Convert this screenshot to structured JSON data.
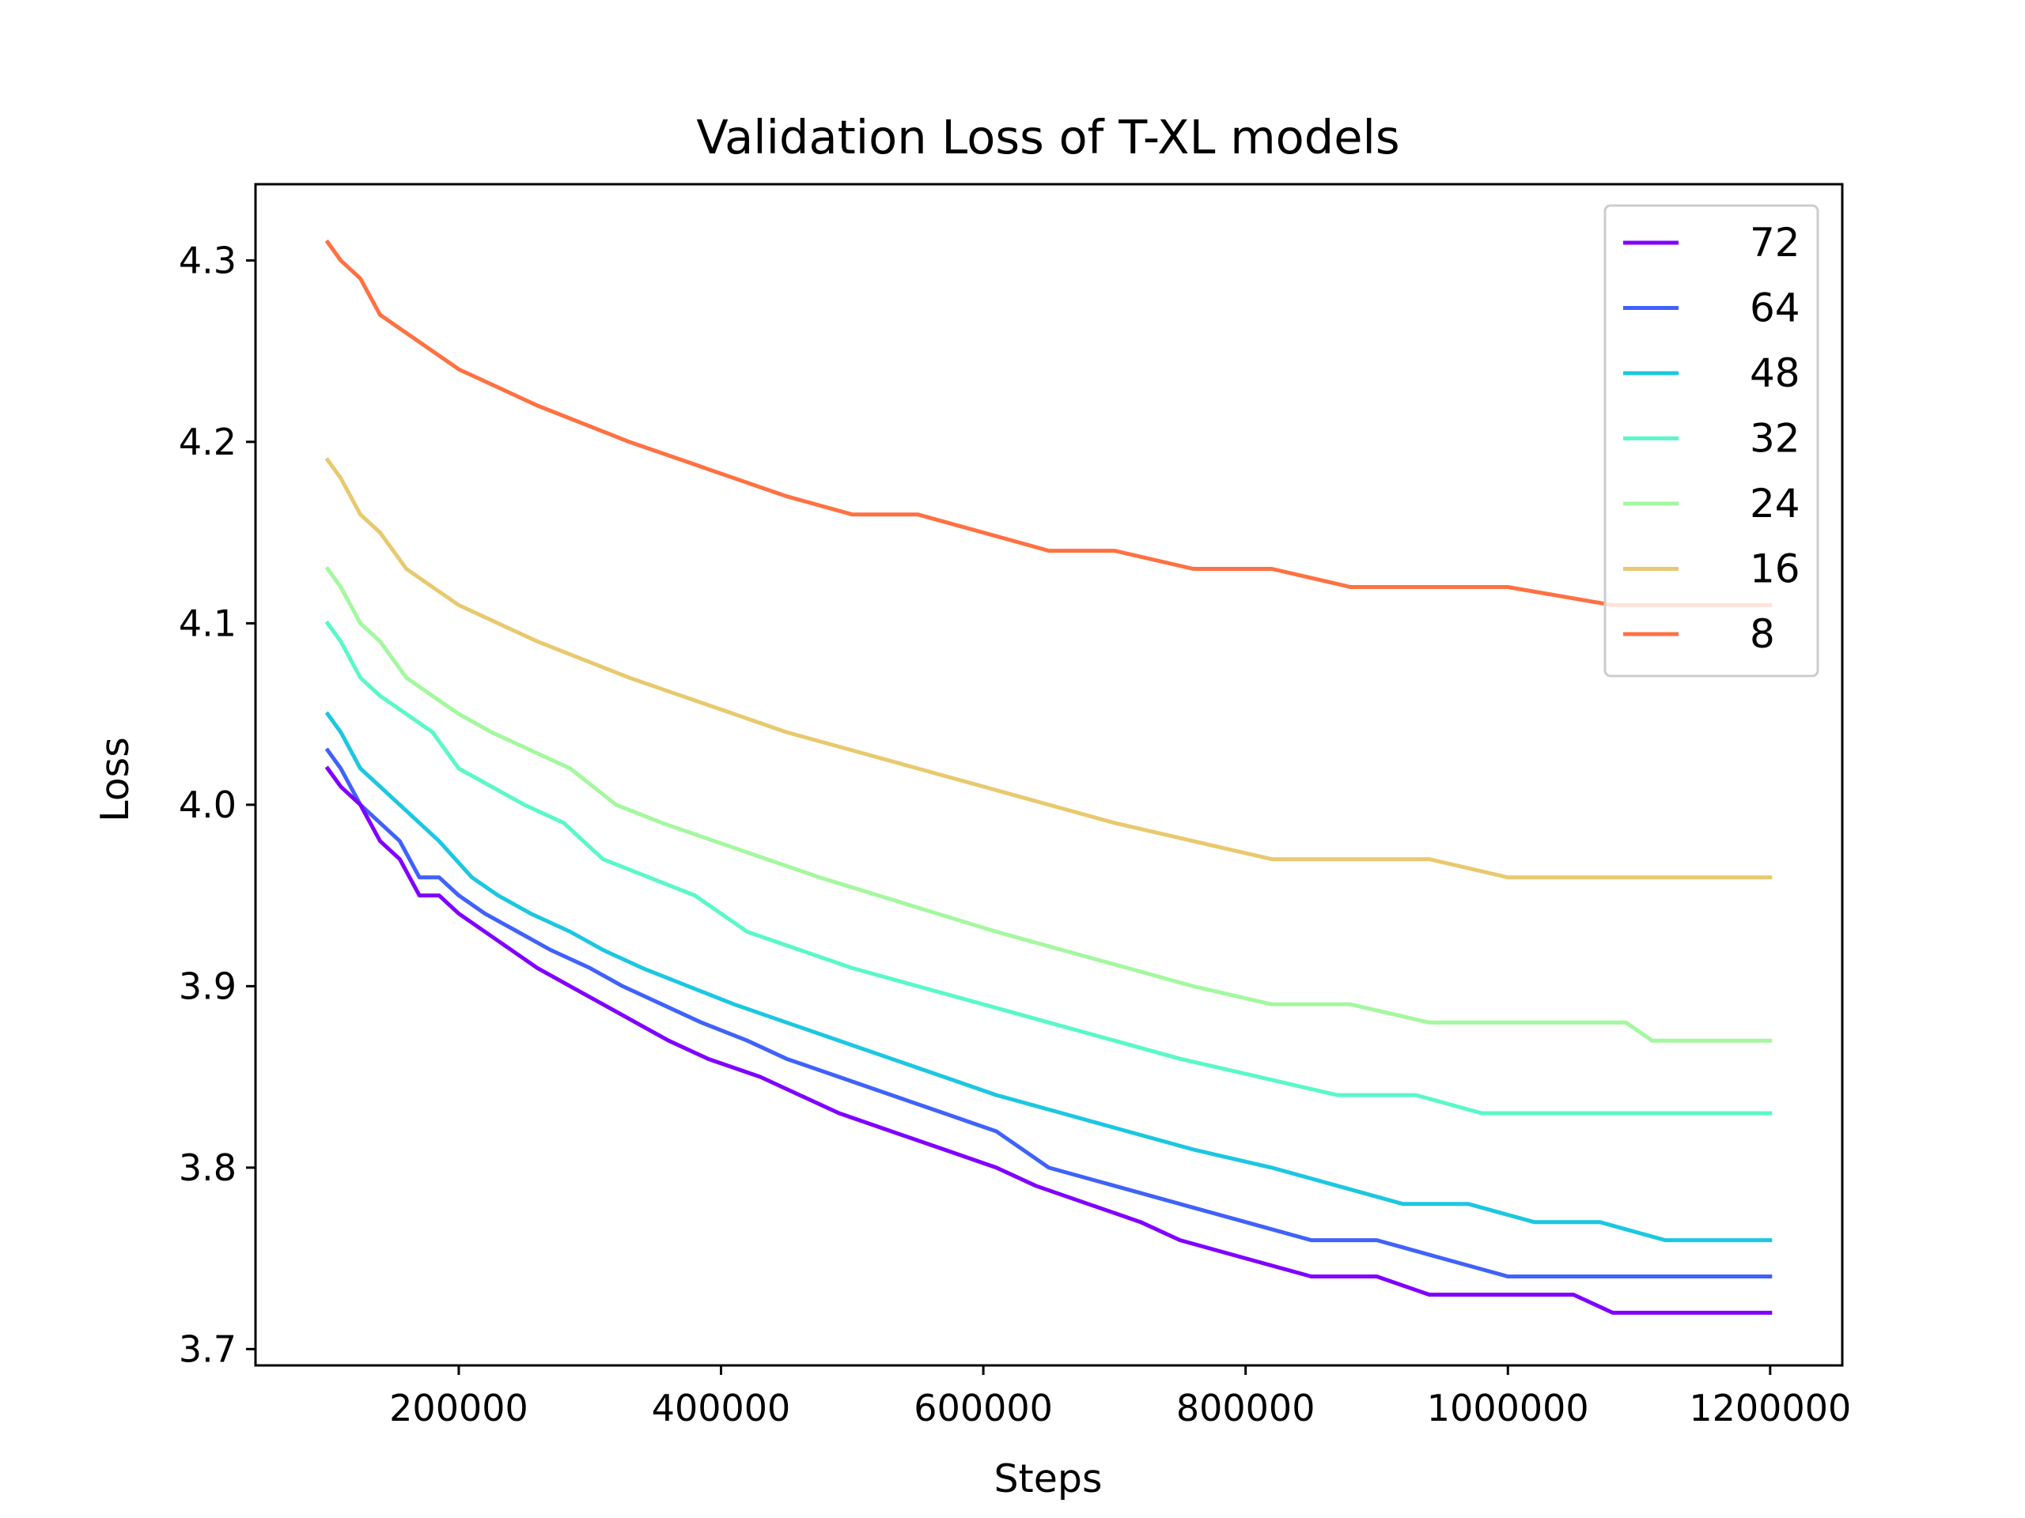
{
  "chart_data": {
    "type": "line",
    "title": "Validation Loss of T-XL models",
    "xlabel": "Steps",
    "ylabel": "Loss",
    "xlim": [
      45000,
      1255000
    ],
    "ylim": [
      3.691,
      4.342
    ],
    "xticks": [
      200000,
      400000,
      600000,
      800000,
      1000000,
      1200000
    ],
    "xtick_labels": [
      "200000",
      "400000",
      "600000",
      "800000",
      "1000000",
      "1200000"
    ],
    "yticks": [
      3.7,
      3.8,
      3.9,
      4.0,
      4.1,
      4.2,
      4.3
    ],
    "ytick_labels": [
      "3.7",
      "3.8",
      "3.9",
      "4.0",
      "4.1",
      "4.2",
      "4.3"
    ],
    "grid": false,
    "legend_position": "top-right",
    "series": [
      {
        "name": "72",
        "color": "#8000ff",
        "x": [
          100000,
          110000,
          125000,
          140000,
          155000,
          170000,
          185000,
          200000,
          220000,
          240000,
          260000,
          285000,
          310000,
          335000,
          360000,
          390000,
          430000,
          460000,
          490000,
          530000,
          570000,
          610000,
          640000,
          680000,
          720000,
          750000,
          800000,
          850000,
          900000,
          940000,
          1000000,
          1050000,
          1080000,
          1100000,
          1150000,
          1200000
        ],
        "y": [
          4.02,
          4.01,
          4.0,
          3.98,
          3.97,
          3.95,
          3.95,
          3.94,
          3.93,
          3.92,
          3.91,
          3.9,
          3.89,
          3.88,
          3.87,
          3.86,
          3.85,
          3.84,
          3.83,
          3.82,
          3.81,
          3.8,
          3.79,
          3.78,
          3.77,
          3.76,
          3.75,
          3.74,
          3.74,
          3.73,
          3.73,
          3.73,
          3.72,
          3.72,
          3.72,
          3.72
        ]
      },
      {
        "name": "64",
        "color": "#4062fa",
        "x": [
          100000,
          110000,
          125000,
          140000,
          155000,
          170000,
          185000,
          200000,
          220000,
          245000,
          270000,
          300000,
          325000,
          355000,
          385000,
          420000,
          450000,
          490000,
          530000,
          570000,
          610000,
          650000,
          700000,
          750000,
          800000,
          850000,
          900000,
          950000,
          1000000,
          1050000,
          1100000,
          1150000,
          1200000
        ],
        "y": [
          4.03,
          4.02,
          4.0,
          3.99,
          3.98,
          3.96,
          3.96,
          3.95,
          3.94,
          3.93,
          3.92,
          3.91,
          3.9,
          3.89,
          3.88,
          3.87,
          3.86,
          3.85,
          3.84,
          3.83,
          3.82,
          3.8,
          3.79,
          3.78,
          3.77,
          3.76,
          3.76,
          3.75,
          3.74,
          3.74,
          3.74,
          3.74,
          3.74
        ]
      },
      {
        "name": "48",
        "color": "#1cc7e1",
        "x": [
          100000,
          110000,
          125000,
          140000,
          155000,
          170000,
          185000,
          210000,
          230000,
          255000,
          285000,
          310000,
          340000,
          375000,
          410000,
          450000,
          490000,
          530000,
          570000,
          610000,
          660000,
          710000,
          760000,
          820000,
          870000,
          920000,
          970000,
          1020000,
          1070000,
          1120000,
          1160000,
          1200000
        ],
        "y": [
          4.05,
          4.04,
          4.02,
          4.01,
          4.0,
          3.99,
          3.98,
          3.96,
          3.95,
          3.94,
          3.93,
          3.92,
          3.91,
          3.9,
          3.89,
          3.88,
          3.87,
          3.86,
          3.85,
          3.84,
          3.83,
          3.82,
          3.81,
          3.8,
          3.79,
          3.78,
          3.78,
          3.77,
          3.77,
          3.76,
          3.76,
          3.76
        ]
      },
      {
        "name": "32",
        "color": "#5af8c8",
        "x": [
          100000,
          110000,
          125000,
          140000,
          160000,
          180000,
          200000,
          225000,
          250000,
          280000,
          310000,
          345000,
          380000,
          420000,
          460000,
          500000,
          550000,
          600000,
          650000,
          700000,
          750000,
          810000,
          870000,
          930000,
          980000,
          1030000,
          1080000,
          1130000,
          1200000
        ],
        "y": [
          4.1,
          4.09,
          4.07,
          4.06,
          4.05,
          4.04,
          4.02,
          4.01,
          4.0,
          3.99,
          3.97,
          3.96,
          3.95,
          3.93,
          3.92,
          3.91,
          3.9,
          3.89,
          3.88,
          3.87,
          3.86,
          3.85,
          3.84,
          3.84,
          3.83,
          3.83,
          3.83,
          3.83,
          3.83
        ]
      },
      {
        "name": "24",
        "color": "#a4f89f",
        "x": [
          100000,
          110000,
          125000,
          140000,
          160000,
          180000,
          200000,
          225000,
          255000,
          285000,
          320000,
          355000,
          395000,
          435000,
          475000,
          520000,
          565000,
          610000,
          660000,
          710000,
          760000,
          820000,
          880000,
          940000,
          1000000,
          1050000,
          1090000,
          1110000,
          1200000
        ],
        "y": [
          4.13,
          4.12,
          4.1,
          4.09,
          4.07,
          4.06,
          4.05,
          4.04,
          4.03,
          4.02,
          4.0,
          3.99,
          3.98,
          3.97,
          3.96,
          3.95,
          3.94,
          3.93,
          3.92,
          3.91,
          3.9,
          3.89,
          3.89,
          3.88,
          3.88,
          3.88,
          3.88,
          3.87,
          3.87
        ]
      },
      {
        "name": "16",
        "color": "#e9c96f",
        "x": [
          100000,
          110000,
          125000,
          140000,
          160000,
          180000,
          200000,
          230000,
          260000,
          295000,
          330000,
          370000,
          410000,
          450000,
          500000,
          550000,
          600000,
          650000,
          700000,
          760000,
          820000,
          880000,
          940000,
          1000000,
          1100000,
          1200000
        ],
        "y": [
          4.19,
          4.18,
          4.16,
          4.15,
          4.13,
          4.12,
          4.11,
          4.1,
          4.09,
          4.08,
          4.07,
          4.06,
          4.05,
          4.04,
          4.03,
          4.02,
          4.01,
          4.0,
          3.99,
          3.98,
          3.97,
          3.97,
          3.97,
          3.96,
          3.96,
          3.96
        ]
      },
      {
        "name": "8",
        "color": "#ff7142",
        "x": [
          100000,
          110000,
          125000,
          140000,
          160000,
          180000,
          200000,
          230000,
          260000,
          295000,
          330000,
          370000,
          410000,
          450000,
          500000,
          550000,
          600000,
          650000,
          700000,
          760000,
          820000,
          880000,
          940000,
          1000000,
          1080000,
          1100000,
          1200000
        ],
        "y": [
          4.31,
          4.3,
          4.29,
          4.27,
          4.26,
          4.25,
          4.24,
          4.23,
          4.22,
          4.21,
          4.2,
          4.19,
          4.18,
          4.17,
          4.16,
          4.16,
          4.15,
          4.14,
          4.14,
          4.13,
          4.13,
          4.12,
          4.12,
          4.12,
          4.11,
          4.11,
          4.11
        ]
      }
    ]
  }
}
